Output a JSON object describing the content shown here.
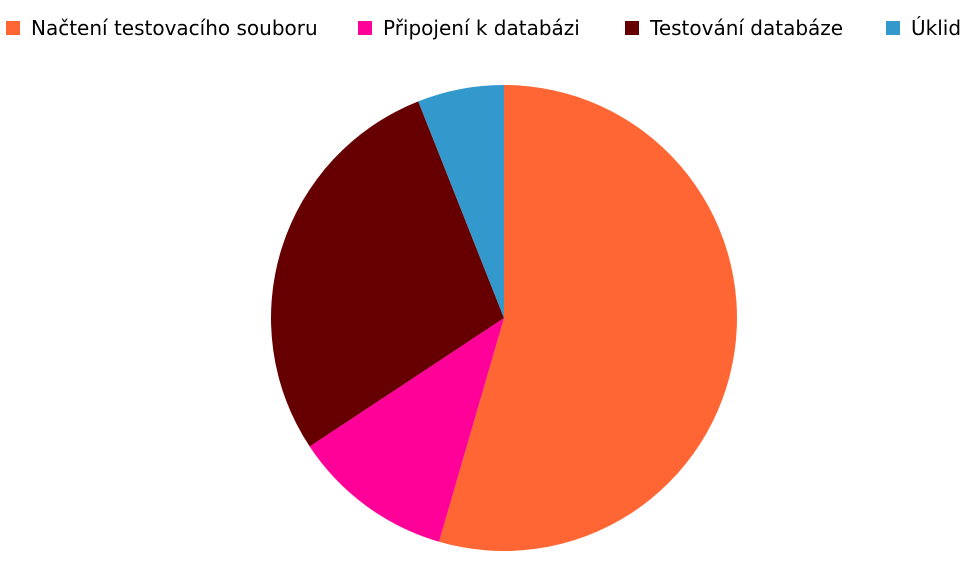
{
  "chart_data": {
    "type": "pie",
    "title": "",
    "legend_position": "top",
    "start_angle_deg": 0,
    "direction": "clockwise",
    "slices": [
      {
        "label": "Načtení testovacího souboru",
        "value": 54.5,
        "color": "#FF6633"
      },
      {
        "label": "Připojení k databázi",
        "value": 11.2,
        "color": "#FF0099"
      },
      {
        "label": "Testování databáze",
        "value": 28.3,
        "color": "#660000"
      },
      {
        "label": "Úklid",
        "value": 6.0,
        "color": "#3399CC"
      }
    ]
  }
}
